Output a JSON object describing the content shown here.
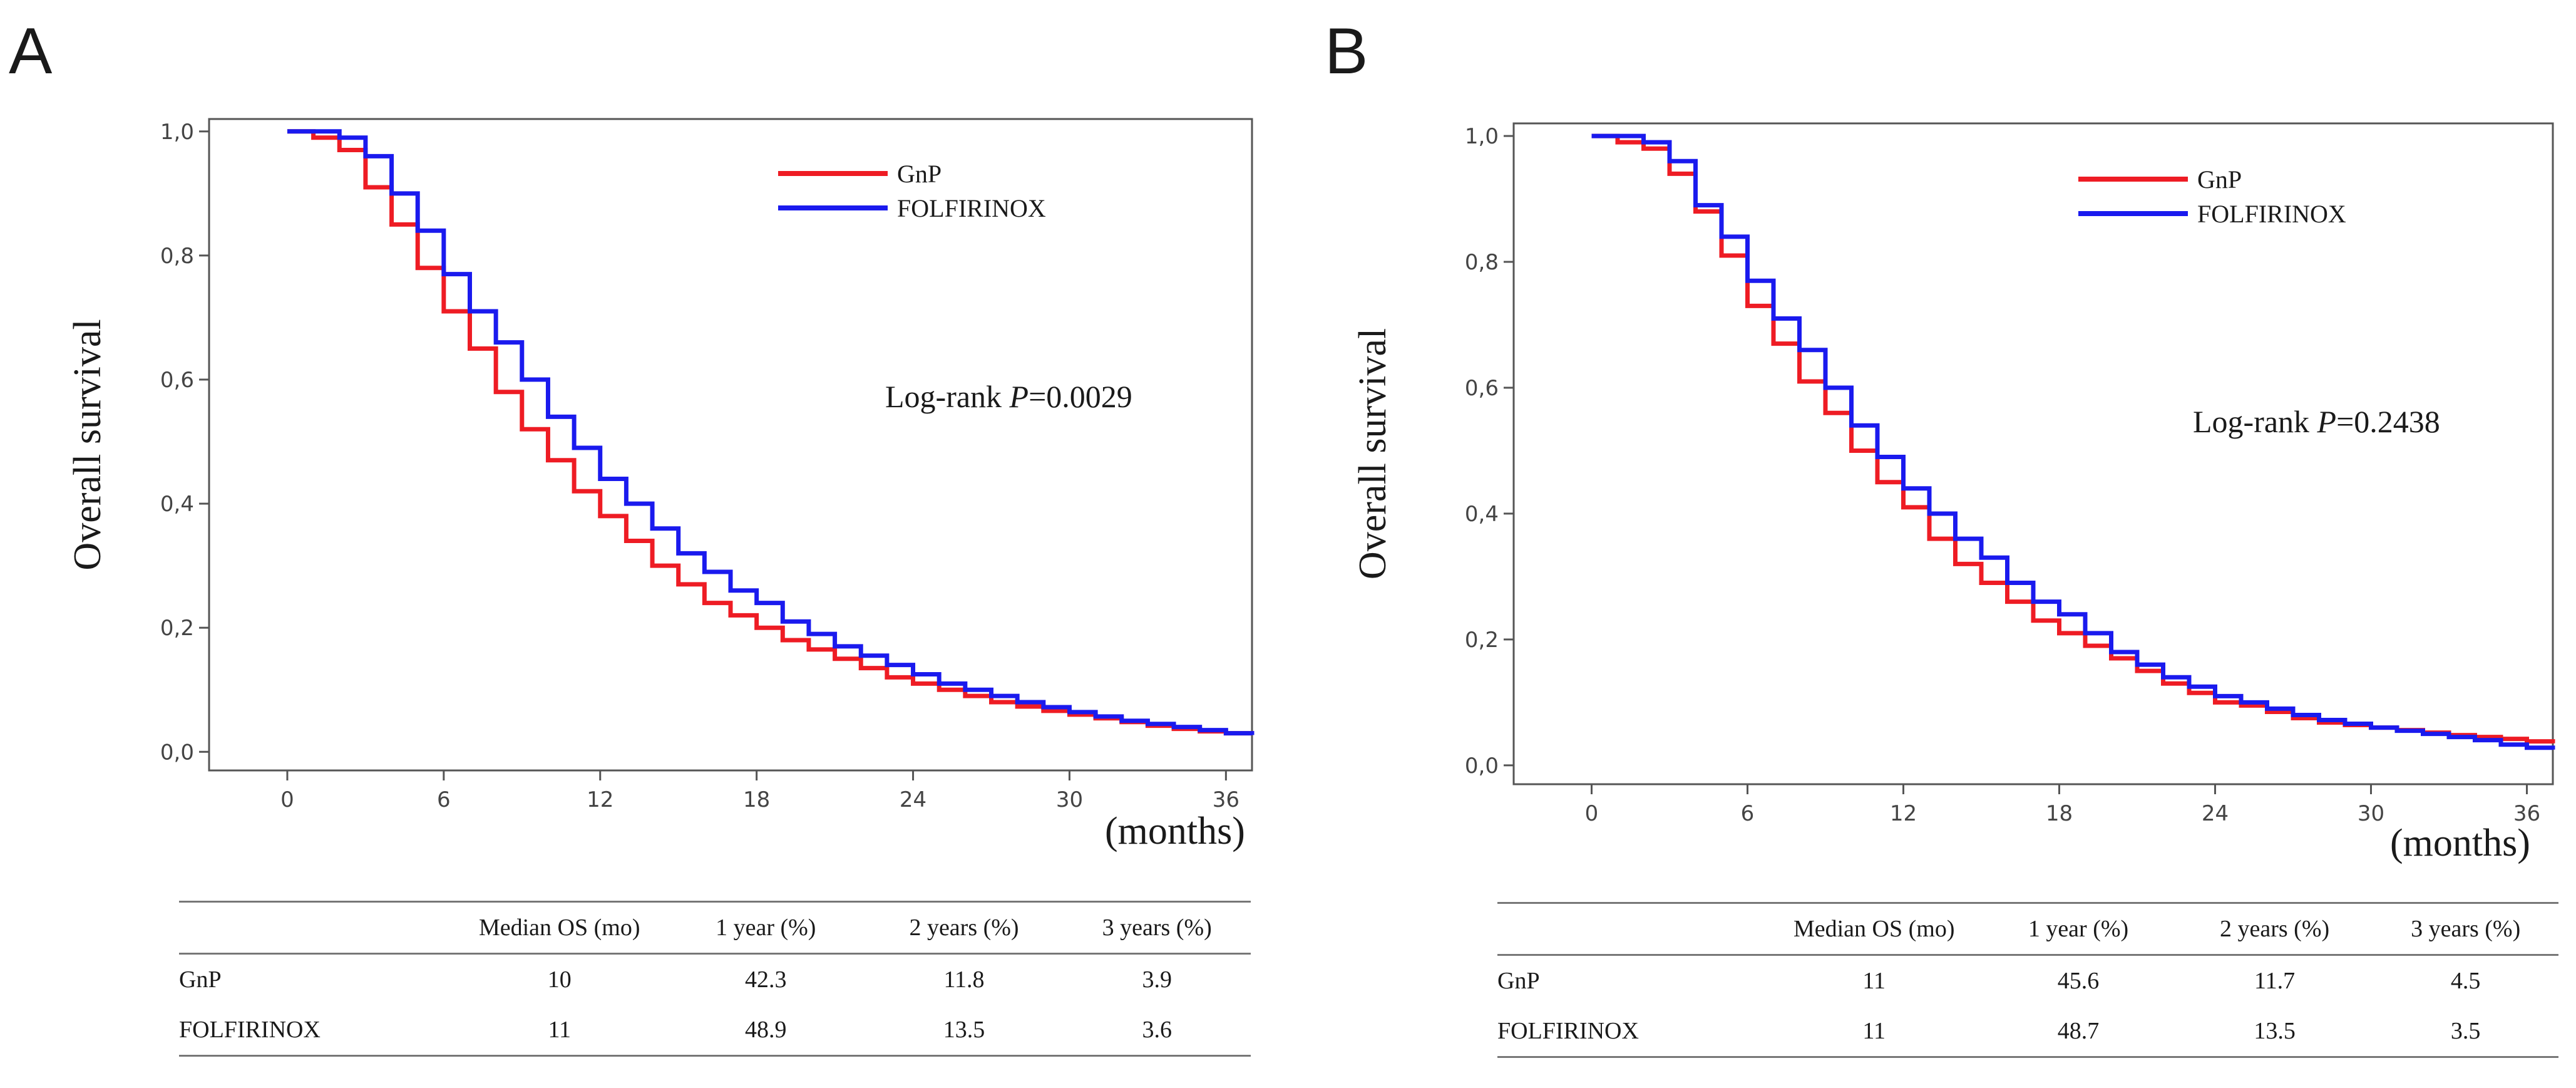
{
  "figure": {
    "panels": [
      {
        "letter": "A",
        "annotation_prefix": "Log-rank ",
        "annotation_p": "P",
        "annotation_value": "=0.0029",
        "x_unit": "(months)",
        "table": {
          "headers": [
            "",
            "Median OS (mo)",
            "1 year (%)",
            "2 years (%)",
            "3 years (%)"
          ],
          "rows": [
            [
              "GnP",
              "10",
              "42.3",
              "11.8",
              "3.9"
            ],
            [
              "FOLFIRINOX",
              "11",
              "48.9",
              "13.5",
              "3.6"
            ]
          ]
        }
      },
      {
        "letter": "B",
        "annotation_prefix": "Log-rank ",
        "annotation_p": "P",
        "annotation_value": "=0.2438",
        "x_unit": "(months)",
        "table": {
          "headers": [
            "",
            "Median OS (mo)",
            "1 year (%)",
            "2 years (%)",
            "3 years (%)"
          ],
          "rows": [
            [
              "GnP",
              "11",
              "45.6",
              "11.7",
              "4.5"
            ],
            [
              "FOLFIRINOX",
              "11",
              "48.7",
              "13.5",
              "3.5"
            ]
          ]
        }
      }
    ]
  },
  "chart_data": [
    {
      "type": "line",
      "title": "A",
      "step": true,
      "xlabel": "(months)",
      "ylabel": "Overall survival",
      "xlim": [
        -3,
        37
      ],
      "ylim": [
        -0.03,
        1.02
      ],
      "xticks": [
        0,
        6,
        12,
        18,
        24,
        30,
        36
      ],
      "yticks": [
        0,
        0.2,
        0.4,
        0.6,
        0.8,
        1.0
      ],
      "ytick_labels": [
        "0,0",
        "0,2",
        "0,4",
        "0,6",
        "0,8",
        "1,0"
      ],
      "xtick_labels": [
        "0",
        "6",
        "12",
        "18",
        "24",
        "30",
        "36"
      ],
      "legend_position": "top-right",
      "grid": false,
      "annotation": "Log-rank P=0.0029",
      "series": [
        {
          "name": "GnP",
          "color": "#ee1c24",
          "x": [
            0,
            1,
            2,
            3,
            4,
            5,
            6,
            7,
            8,
            9,
            10,
            11,
            12,
            13,
            14,
            15,
            16,
            17,
            18,
            19,
            20,
            21,
            22,
            23,
            24,
            25,
            26,
            27,
            28,
            29,
            30,
            31,
            32,
            33,
            34,
            35,
            36,
            37
          ],
          "y": [
            1.0,
            0.99,
            0.97,
            0.91,
            0.85,
            0.78,
            0.71,
            0.65,
            0.58,
            0.52,
            0.47,
            0.42,
            0.38,
            0.34,
            0.3,
            0.27,
            0.24,
            0.22,
            0.2,
            0.18,
            0.165,
            0.15,
            0.135,
            0.12,
            0.11,
            0.1,
            0.09,
            0.08,
            0.073,
            0.066,
            0.06,
            0.054,
            0.048,
            0.042,
            0.037,
            0.033,
            0.03,
            0.028
          ]
        },
        {
          "name": "FOLFIRINOX",
          "color": "#1a1aee",
          "x": [
            0,
            1,
            2,
            3,
            4,
            5,
            6,
            7,
            8,
            9,
            10,
            11,
            12,
            13,
            14,
            15,
            16,
            17,
            18,
            19,
            20,
            21,
            22,
            23,
            24,
            25,
            26,
            27,
            28,
            29,
            30,
            31,
            32,
            33,
            34,
            35,
            36,
            37
          ],
          "y": [
            1.0,
            1.0,
            0.99,
            0.96,
            0.9,
            0.84,
            0.77,
            0.71,
            0.66,
            0.6,
            0.54,
            0.49,
            0.44,
            0.4,
            0.36,
            0.32,
            0.29,
            0.26,
            0.24,
            0.21,
            0.19,
            0.17,
            0.155,
            0.14,
            0.125,
            0.11,
            0.1,
            0.09,
            0.08,
            0.072,
            0.064,
            0.057,
            0.05,
            0.045,
            0.04,
            0.035,
            0.03,
            0.027
          ]
        }
      ]
    },
    {
      "type": "line",
      "title": "B",
      "step": true,
      "xlabel": "(months)",
      "ylabel": "Overall survival",
      "xlim": [
        -3,
        37
      ],
      "ylim": [
        -0.03,
        1.02
      ],
      "xticks": [
        0,
        6,
        12,
        18,
        24,
        30,
        36
      ],
      "yticks": [
        0,
        0.2,
        0.4,
        0.6,
        0.8,
        1.0
      ],
      "ytick_labels": [
        "0,0",
        "0,2",
        "0,4",
        "0,6",
        "0,8",
        "1,0"
      ],
      "xtick_labels": [
        "0",
        "6",
        "12",
        "18",
        "24",
        "30",
        "36"
      ],
      "legend_position": "top-right",
      "grid": false,
      "annotation": "Log-rank P=0.2438",
      "series": [
        {
          "name": "GnP",
          "color": "#ee1c24",
          "x": [
            0,
            1,
            2,
            3,
            4,
            5,
            6,
            7,
            8,
            9,
            10,
            11,
            12,
            13,
            14,
            15,
            16,
            17,
            18,
            19,
            20,
            21,
            22,
            23,
            24,
            25,
            26,
            27,
            28,
            29,
            30,
            31,
            32,
            33,
            34,
            35,
            36,
            37
          ],
          "y": [
            1.0,
            0.99,
            0.98,
            0.94,
            0.88,
            0.81,
            0.73,
            0.67,
            0.61,
            0.56,
            0.5,
            0.45,
            0.41,
            0.36,
            0.32,
            0.29,
            0.26,
            0.23,
            0.21,
            0.19,
            0.17,
            0.15,
            0.13,
            0.115,
            0.1,
            0.095,
            0.085,
            0.075,
            0.068,
            0.064,
            0.06,
            0.056,
            0.052,
            0.048,
            0.045,
            0.042,
            0.038,
            0.035
          ]
        },
        {
          "name": "FOLFIRINOX",
          "color": "#1a1aee",
          "x": [
            0,
            1,
            2,
            3,
            4,
            5,
            6,
            7,
            8,
            9,
            10,
            11,
            12,
            13,
            14,
            15,
            16,
            17,
            18,
            19,
            20,
            21,
            22,
            23,
            24,
            25,
            26,
            27,
            28,
            29,
            30,
            31,
            32,
            33,
            34,
            35,
            36,
            37
          ],
          "y": [
            1.0,
            1.0,
            0.99,
            0.96,
            0.89,
            0.84,
            0.77,
            0.71,
            0.66,
            0.6,
            0.54,
            0.49,
            0.44,
            0.4,
            0.36,
            0.33,
            0.29,
            0.26,
            0.24,
            0.21,
            0.18,
            0.16,
            0.14,
            0.125,
            0.11,
            0.1,
            0.09,
            0.08,
            0.072,
            0.066,
            0.06,
            0.055,
            0.05,
            0.045,
            0.04,
            0.033,
            0.028,
            0.025
          ]
        }
      ]
    }
  ]
}
